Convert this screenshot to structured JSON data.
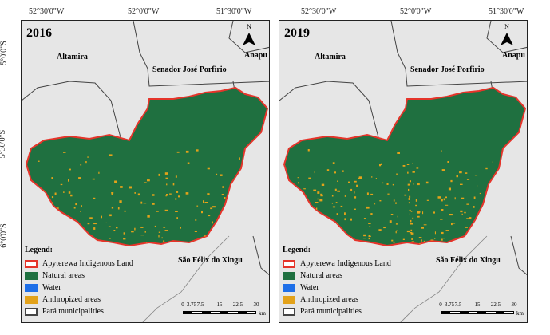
{
  "coordinates": {
    "top": [
      "52°30'0\"W",
      "52°0'0\"W",
      "51°30'0\"W"
    ],
    "side": [
      "5°0'0\"S",
      "5°30'0\"S",
      "6°0'0\"S"
    ]
  },
  "panels": [
    {
      "year": "2016"
    },
    {
      "year": "2019"
    }
  ],
  "places": {
    "altamira": "Altamira",
    "anapu": "Anapu",
    "senador": "Senador José Porfirio",
    "sao_felix": "São Félix do Xingu"
  },
  "north_arrow": {
    "letter": "N"
  },
  "legend": {
    "title": "Legend:",
    "items": [
      {
        "label": "Apyterewa Indigenous Land",
        "fill": "#ffffff",
        "border": "#e5342a"
      },
      {
        "label": "Natural areas",
        "fill": "#1f7040",
        "border": "#1f7040"
      },
      {
        "label": "Water",
        "fill": "#1e6fe8",
        "border": "#1e6fe8"
      },
      {
        "label": "Anthropized areas",
        "fill": "#e3a21a",
        "border": "#e3a21a"
      },
      {
        "label": "Pará municipalities",
        "fill": "#ffffff",
        "border": "#444444"
      }
    ]
  },
  "scale": {
    "labels": [
      "0",
      "3.75",
      "7.5",
      "15",
      "22.5",
      "30"
    ],
    "unit": "km"
  },
  "colors": {
    "background": "#e6e6e6",
    "natural": "#1f7040",
    "anthropized": "#e3a21a",
    "boundary": "#e5342a",
    "municipality": "#444444"
  }
}
